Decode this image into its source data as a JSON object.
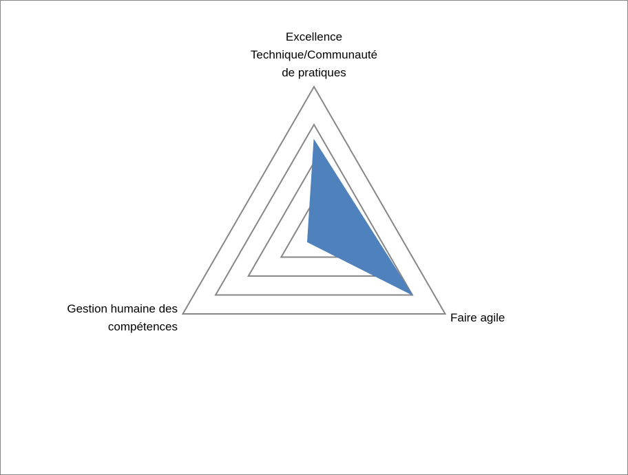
{
  "chart_data": {
    "type": "radar",
    "categories": [
      [
        "Excellence",
        "Technique/Communauté",
        "de pratiques"
      ],
      [
        "Faire agile"
      ],
      [
        "Gestion humaine des",
        "compétences"
      ]
    ],
    "series": [
      {
        "values": [
          2.6,
          3,
          0.2
        ]
      }
    ],
    "rlim": [
      0,
      4
    ],
    "grid_levels": [
      1,
      2,
      3,
      4
    ],
    "ticks_visible": false,
    "legend": "none",
    "colors": {
      "fill": "#4f81bd",
      "grid": "#868686",
      "border": "#868686",
      "text": "#000000"
    }
  }
}
